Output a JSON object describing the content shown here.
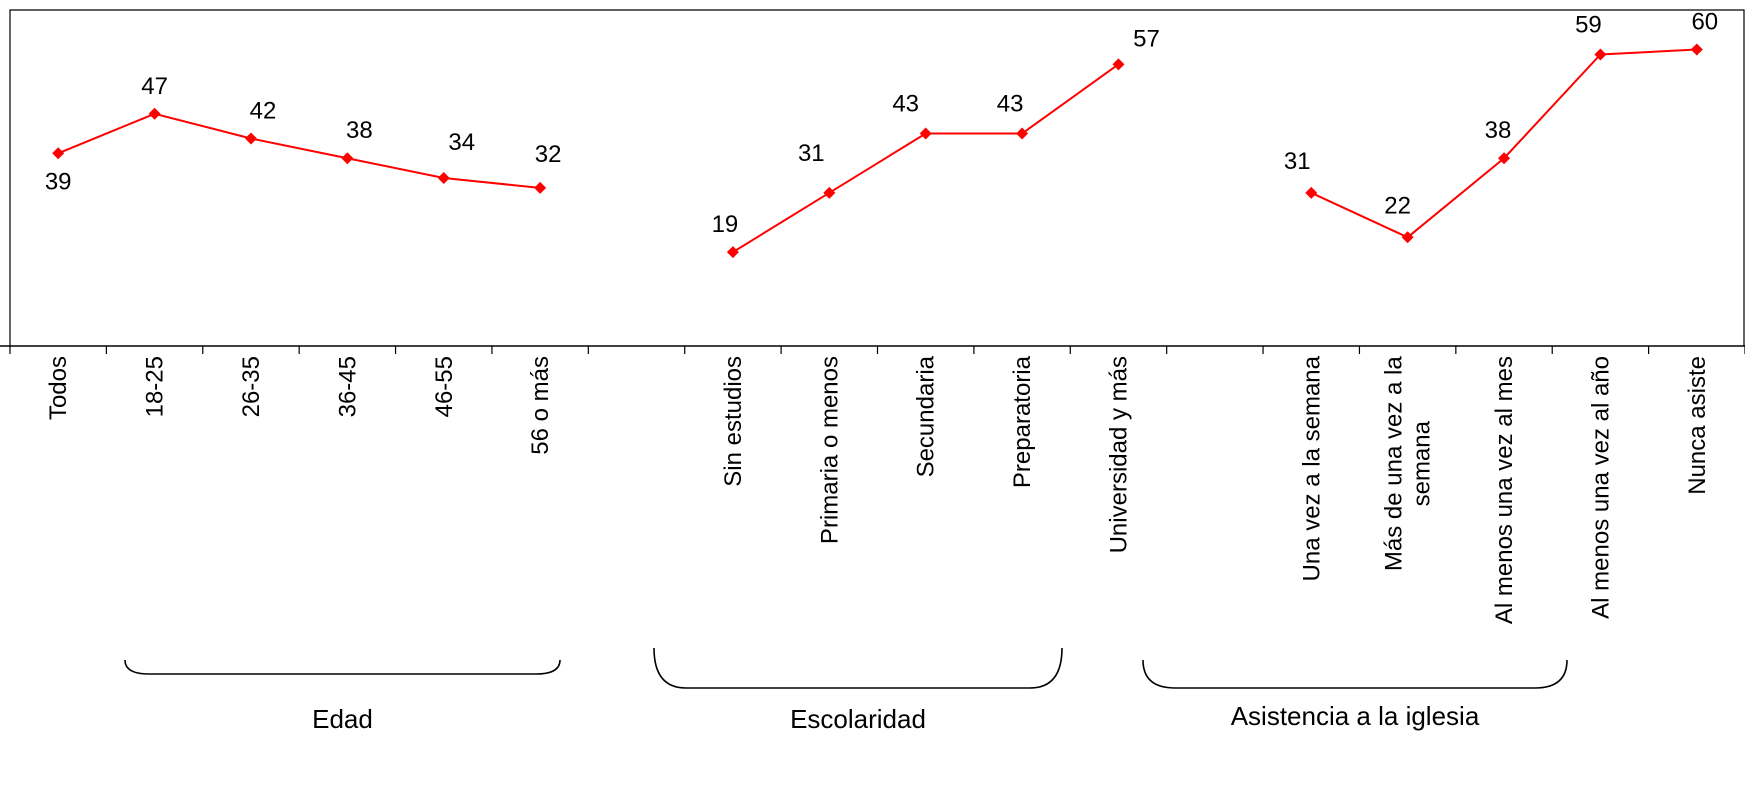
{
  "chart_data": {
    "type": "line",
    "title": "",
    "xlabel": "",
    "ylabel": "",
    "ylim": [
      0,
      68
    ],
    "grid": false,
    "legend": "none",
    "categories": [
      "Todos",
      "18-25",
      "26-35",
      "36-45",
      "46-55",
      "56 o más",
      "",
      "Sin estudios",
      "Primaria o menos",
      "Secundaria",
      "Preparatoria",
      "Universidad y más",
      "",
      "Una vez a la semana",
      "Más de una vez a la semana",
      "Al menos una vez al mes",
      "Al menos una vez al año",
      "Nunca asiste"
    ],
    "category_lines": {
      "Más de una vez a la semana": [
        "Más de una vez a la",
        "semana"
      ]
    },
    "series": [
      {
        "segments": [
          {
            "start_index": 0,
            "values": [
              39,
              47,
              42,
              38,
              34,
              32
            ]
          },
          {
            "start_index": 7,
            "values": [
              19,
              31,
              43,
              43,
              57
            ]
          },
          {
            "start_index": 13,
            "values": [
              31,
              22,
              38,
              59,
              60
            ]
          }
        ],
        "color": "#ff0000"
      }
    ],
    "data_labels": [
      "39",
      "47",
      "42",
      "38",
      "34",
      "32",
      "19",
      "31",
      "43",
      "43",
      "57",
      "31",
      "22",
      "38",
      "59",
      "60"
    ],
    "groups": [
      {
        "label": "Edad",
        "from_index": 1,
        "to_index": 6
      },
      {
        "label": "Escolaridad",
        "from_index": 7,
        "to_index": 11
      },
      {
        "label": "Asistencia a la iglesia",
        "from_index": 13,
        "to_index": 17
      }
    ],
    "colors": {
      "line": "#ff0000",
      "axis": "#000000"
    }
  }
}
